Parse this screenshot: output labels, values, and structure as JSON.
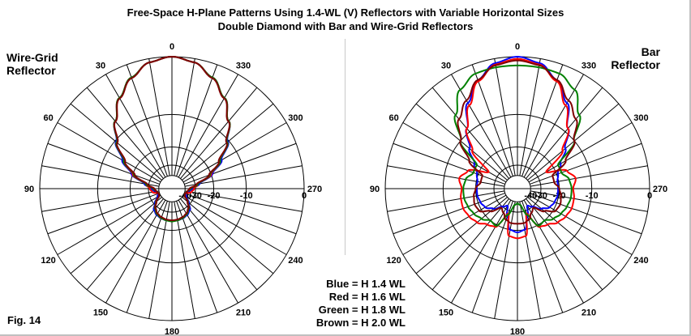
{
  "title_line1": "Free-Space H-Plane Patterns Using 1.4-WL (V) Reflectors with Variable Horizontal Sizes",
  "title_line2": "Double Diamond with Bar and Wire-Grid Reflectors",
  "figure_label": "Fig. 14",
  "legend": [
    "Blue = H 1.4 WL",
    "Red = H 1.6 WL",
    "Green = H 1.8 WL",
    "Brown = H 2.0 WL"
  ],
  "colors": {
    "blue": "#0000ff",
    "red": "#ff0000",
    "green": "#008000",
    "brown": "#800000"
  },
  "chart_data": [
    {
      "type": "polar",
      "panel_label": [
        "Wire-Grid",
        "Reflector"
      ],
      "angle_labels": [
        "0",
        "30",
        "60",
        "90",
        "120",
        "150",
        "180",
        "210",
        "240",
        "270",
        "300",
        "330"
      ],
      "radial_labels": [
        "-40",
        "-30",
        "-20",
        "-10",
        "0"
      ],
      "rlim_db": [
        -40,
        0
      ],
      "angles_deg": [
        0,
        10,
        20,
        30,
        40,
        50,
        60,
        70,
        80,
        90,
        100,
        110,
        120,
        130,
        140,
        150,
        160,
        170,
        180
      ],
      "symmetric": true,
      "series": [
        {
          "name": "Blue = H 1.4 WL",
          "color": "blue",
          "db": [
            0,
            -0.5,
            -1.9,
            -4,
            -7,
            -10.3,
            -14.5,
            -19.5,
            -27,
            -32,
            -36,
            -38,
            -36,
            -31,
            -27,
            -25.5,
            -24.8,
            -24.5,
            -24.4
          ]
        },
        {
          "name": "Red = H 1.6 WL",
          "color": "red",
          "db": [
            0,
            -0.5,
            -1.9,
            -4,
            -7,
            -10.5,
            -15,
            -20,
            -28,
            -31,
            -33,
            -39,
            -38,
            -32,
            -28,
            -26,
            -25,
            -24.6,
            -24.5
          ]
        },
        {
          "name": "Green = H 1.8 WL",
          "color": "green",
          "db": [
            0,
            -0.5,
            -1.9,
            -4,
            -7,
            -10.5,
            -15,
            -20.5,
            -28,
            -34,
            -37,
            -39,
            -38,
            -32,
            -28,
            -26,
            -25,
            -24.5,
            -24.2
          ]
        },
        {
          "name": "Brown = H 2.0 WL",
          "color": "brown",
          "db": [
            0,
            -0.5,
            -2,
            -4.1,
            -7.1,
            -10.7,
            -15.5,
            -21,
            -29,
            -35,
            -37,
            -39,
            -38,
            -32.5,
            -28.5,
            -26.5,
            -25.5,
            -25,
            -24.8
          ]
        }
      ]
    },
    {
      "type": "polar",
      "panel_label": [
        "Bar",
        "Reflector"
      ],
      "angle_labels": [
        "0",
        "30",
        "60",
        "90",
        "120",
        "150",
        "180",
        "210",
        "240",
        "270",
        "300",
        "330"
      ],
      "radial_labels": [
        "-40",
        "-30",
        "-20",
        "-10",
        "0"
      ],
      "rlim_db": [
        -40,
        0
      ],
      "angles_deg": [
        0,
        10,
        20,
        30,
        40,
        50,
        60,
        70,
        80,
        90,
        100,
        110,
        120,
        130,
        140,
        150,
        160,
        170,
        180
      ],
      "symmetric": true,
      "series": [
        {
          "name": "Blue = H 1.4 WL",
          "color": "blue",
          "db": [
            0,
            -0.6,
            -2.3,
            -5,
            -9,
            -13,
            -17,
            -19.5,
            -20.5,
            -20.5,
            -20.5,
            -21,
            -22,
            -25,
            -30,
            -33,
            -26,
            -20,
            -19.2
          ]
        },
        {
          "name": "Red = H 1.6 WL",
          "color": "red",
          "db": [
            -0.3,
            -0.8,
            -2.5,
            -5.5,
            -9,
            -14,
            -24,
            -16,
            -14,
            -15,
            -14.5,
            -14.4,
            -15,
            -16,
            -18,
            -19,
            -28,
            -17.5,
            -17
          ]
        },
        {
          "name": "Green = H 1.8 WL",
          "color": "green",
          "db": [
            -1.2,
            -1.2,
            -1.3,
            -2.5,
            -5.5,
            -10,
            -18,
            -18,
            -16,
            -15.5,
            -15.5,
            -16,
            -16.8,
            -18,
            -20,
            -19.5,
            -27,
            -36,
            -38
          ]
        },
        {
          "name": "Brown = H 2.0 WL",
          "color": "brown",
          "db": [
            -0.5,
            -0.9,
            -2.3,
            -4.5,
            -6.5,
            -10,
            -15,
            -22,
            -22,
            -20,
            -19,
            -18.5,
            -19,
            -23,
            -29,
            -27,
            -24,
            -23,
            -23
          ]
        }
      ]
    }
  ]
}
